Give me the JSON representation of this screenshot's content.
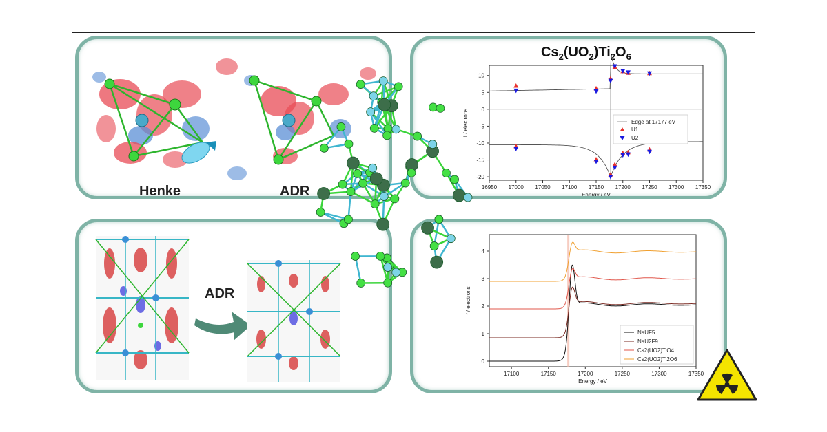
{
  "panels": {
    "top_left": {
      "label_left": "Henke",
      "label_right": "ADR"
    },
    "bottom_left": {
      "arrow_label": "ADR"
    },
    "top_right": {
      "title_parts": [
        "Cs",
        "2",
        "(UO",
        "2",
        ")Ti",
        "2",
        "O",
        "6"
      ]
    }
  },
  "chart_data": [
    {
      "type": "scatter",
      "title": "Cs2(UO2)Ti2O6",
      "xlabel": "Energy / eV",
      "ylabel": "f / electrons",
      "xlim": [
        16950,
        17350
      ],
      "ylim": [
        -21,
        13
      ],
      "xticks": [
        16950,
        17000,
        17050,
        17100,
        17150,
        17200,
        17250,
        17300,
        17350
      ],
      "yticks": [
        -20,
        -15,
        -10,
        -5,
        0,
        5,
        10
      ],
      "edge_energy": 17177,
      "legend_position": "center-right",
      "legend": [
        "Edge at 17177 eV",
        "U1",
        "U2"
      ],
      "series": [
        {
          "name": "U1",
          "marker": "triangle-up",
          "color": "#e8322d",
          "x": [
            17000,
            17150,
            17177,
            17185,
            17200,
            17210,
            17250
          ],
          "f_prime2": [
            6.9,
            6.1,
            9.0,
            12.5,
            11.2,
            10.7,
            10.6
          ],
          "f_prime": [
            -11.0,
            -14.9,
            -19.4,
            -16.4,
            -13.0,
            -12.8,
            -12.0
          ]
        },
        {
          "name": "U2",
          "marker": "triangle-down",
          "color": "#1a1adf",
          "x": [
            17000,
            17150,
            17177,
            17185,
            17200,
            17210,
            17250
          ],
          "f_prime2": [
            5.6,
            5.4,
            8.5,
            12.8,
            11.4,
            11.0,
            10.7
          ],
          "f_prime": [
            -11.6,
            -15.4,
            -19.9,
            -17.2,
            -13.5,
            -13.3,
            -12.5
          ]
        }
      ]
    },
    {
      "type": "line",
      "xlabel": "Energy / eV",
      "ylabel": "f / electrons",
      "xlim": [
        17070,
        17350
      ],
      "ylim": [
        -0.2,
        4.6
      ],
      "xticks": [
        17100,
        17150,
        17200,
        17250,
        17300,
        17350
      ],
      "yticks": [
        0,
        1,
        2,
        3,
        4
      ],
      "edge_energy": 17177,
      "legend_position": "lower-right",
      "series": [
        {
          "name": "NaUF5",
          "color": "#111111",
          "offset": 0.0,
          "peak": 3.7,
          "post": 2.05
        },
        {
          "name": "NaU2F9",
          "color": "#7a2a22",
          "offset": 0.85,
          "peak": 2.8,
          "post": 2.1
        },
        {
          "name": "Cs2(UO2)TiO4",
          "color": "#e0574b",
          "offset": 1.9,
          "peak": 3.45,
          "post": 3.0
        },
        {
          "name": "Cs2(UO2)Ti2O6",
          "color": "#f0a030",
          "offset": 2.9,
          "peak": 4.4,
          "post": 3.98
        }
      ]
    }
  ]
}
